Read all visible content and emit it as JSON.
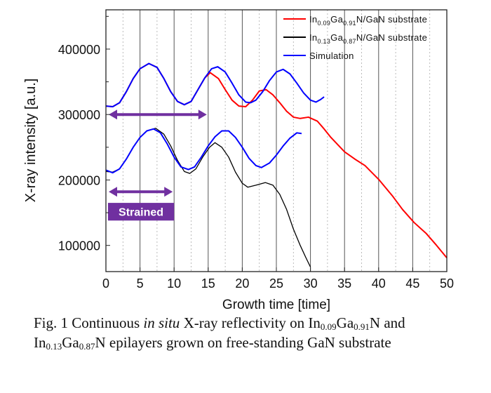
{
  "chart_data": {
    "type": "line",
    "xlabel": "Growth time [time]",
    "ylabel": "X-ray intensity [a.u.]",
    "xlim": [
      0,
      50
    ],
    "ylim": [
      60000,
      460000
    ],
    "xticks": [
      0,
      5,
      10,
      15,
      20,
      25,
      30,
      35,
      40,
      45,
      50
    ],
    "yticks": [
      100000,
      200000,
      300000,
      400000
    ],
    "grid": "vertical (solid major every 5, dotted minor every 2.5)",
    "legend_position": "top-right",
    "series": [
      {
        "name": "In0.09Ga0.91N/GaN substrate",
        "name_parts": [
          [
            "In",
            ""
          ],
          [
            "0.09",
            "sub"
          ],
          [
            "Ga",
            ""
          ],
          [
            "0.91",
            "sub"
          ],
          [
            "N/GaN substrate",
            ""
          ]
        ],
        "color": "#ff0000",
        "points": [
          [
            0,
            313000
          ],
          [
            1,
            312000
          ],
          [
            2,
            318000
          ],
          [
            3,
            335000
          ],
          [
            4,
            355000
          ],
          [
            5,
            370000
          ],
          [
            6.3,
            378000
          ],
          [
            7.5,
            372000
          ],
          [
            8.5,
            355000
          ],
          [
            9.5,
            335000
          ],
          [
            10.5,
            320000
          ],
          [
            11.5,
            315000
          ],
          [
            12.5,
            320000
          ],
          [
            13.5,
            338000
          ],
          [
            14.5,
            356000
          ],
          [
            15.3,
            364000
          ],
          [
            16.5,
            355000
          ],
          [
            17.5,
            338000
          ],
          [
            18.5,
            322000
          ],
          [
            19.5,
            313000
          ],
          [
            20.5,
            312000
          ],
          [
            21.5,
            322000
          ],
          [
            22.5,
            336000
          ],
          [
            23.5,
            338000
          ],
          [
            24.5,
            330000
          ],
          [
            25.5,
            318000
          ],
          [
            26.5,
            305000
          ],
          [
            27.5,
            296000
          ],
          [
            28.5,
            294000
          ],
          [
            29.7,
            296000
          ],
          [
            31,
            290000
          ],
          [
            32,
            278000
          ],
          [
            33,
            265000
          ],
          [
            35,
            243000
          ],
          [
            36.5,
            232000
          ],
          [
            38,
            222000
          ],
          [
            40,
            201000
          ],
          [
            42,
            176000
          ],
          [
            43.5,
            155000
          ],
          [
            45.2,
            135000
          ],
          [
            47,
            118000
          ],
          [
            48.5,
            100000
          ],
          [
            50,
            81000
          ]
        ]
      },
      {
        "name": "In0.13Ga0.87N/GaN substrate",
        "name_parts": [
          [
            "In",
            ""
          ],
          [
            "0.13",
            "sub"
          ],
          [
            "Ga",
            ""
          ],
          [
            "0.87",
            "sub"
          ],
          [
            "N/GaN substrate",
            ""
          ]
        ],
        "color": "#000000",
        "points": [
          [
            0,
            213000
          ],
          [
            1,
            212000
          ],
          [
            2,
            217000
          ],
          [
            3,
            232000
          ],
          [
            4,
            250000
          ],
          [
            5,
            265000
          ],
          [
            6,
            275000
          ],
          [
            7.3,
            279000
          ],
          [
            8.5,
            270000
          ],
          [
            9.5,
            252000
          ],
          [
            10.5,
            230000
          ],
          [
            11.5,
            213000
          ],
          [
            12.3,
            210000
          ],
          [
            13.2,
            217000
          ],
          [
            14.2,
            235000
          ],
          [
            15.2,
            250000
          ],
          [
            16,
            257000
          ],
          [
            17,
            250000
          ],
          [
            18,
            235000
          ],
          [
            19,
            212000
          ],
          [
            20,
            195000
          ],
          [
            20.8,
            189000
          ],
          [
            22,
            192000
          ],
          [
            23.4,
            196000
          ],
          [
            24.5,
            192000
          ],
          [
            25.5,
            178000
          ],
          [
            26.5,
            155000
          ],
          [
            27.5,
            125000
          ],
          [
            28.5,
            100000
          ],
          [
            29.3,
            82000
          ],
          [
            30,
            67000
          ]
        ]
      },
      {
        "name": "Simulation",
        "name_parts": [
          [
            "Simulation",
            ""
          ]
        ],
        "color": "#0000ff",
        "points": [
          [
            0,
            313000
          ],
          [
            1,
            312000
          ],
          [
            2,
            318000
          ],
          [
            3,
            335000
          ],
          [
            4,
            355000
          ],
          [
            5,
            370000
          ],
          [
            6.3,
            378000
          ],
          [
            7.5,
            372000
          ],
          [
            8.5,
            355000
          ],
          [
            9.5,
            335000
          ],
          [
            10.5,
            320000
          ],
          [
            11.5,
            315000
          ],
          [
            12.5,
            320000
          ],
          [
            13.5,
            338000
          ],
          [
            14.5,
            356000
          ],
          [
            15.5,
            370000
          ],
          [
            16.4,
            373000
          ],
          [
            17.5,
            365000
          ],
          [
            18.5,
            348000
          ],
          [
            19.5,
            330000
          ],
          [
            20.5,
            319000
          ],
          [
            21.2,
            318000
          ],
          [
            22,
            322000
          ],
          [
            23,
            335000
          ],
          [
            24,
            352000
          ],
          [
            25,
            365000
          ],
          [
            26,
            369000
          ],
          [
            27,
            362000
          ],
          [
            28,
            348000
          ],
          [
            29,
            333000
          ],
          [
            30,
            322000
          ],
          [
            30.8,
            319000
          ],
          [
            31.5,
            323000
          ],
          [
            32,
            327000
          ]
        ]
      },
      {
        "name": "Simulation",
        "legend": false,
        "color": "#0000ff",
        "points": [
          [
            0,
            215000
          ],
          [
            1,
            211000
          ],
          [
            2,
            217000
          ],
          [
            3,
            232000
          ],
          [
            4,
            250000
          ],
          [
            5,
            265000
          ],
          [
            6,
            275000
          ],
          [
            7,
            278000
          ],
          [
            8,
            272000
          ],
          [
            9,
            255000
          ],
          [
            10,
            235000
          ],
          [
            11,
            220000
          ],
          [
            12.1,
            216000
          ],
          [
            13,
            220000
          ],
          [
            14,
            235000
          ],
          [
            15,
            252000
          ],
          [
            16,
            266000
          ],
          [
            17,
            275000
          ],
          [
            18,
            275000
          ],
          [
            19,
            265000
          ],
          [
            20,
            250000
          ],
          [
            21,
            233000
          ],
          [
            22,
            222000
          ],
          [
            22.8,
            219000
          ],
          [
            24,
            226000
          ],
          [
            25,
            238000
          ],
          [
            26,
            252000
          ],
          [
            27,
            264000
          ],
          [
            28,
            272000
          ],
          [
            28.7,
            271000
          ]
        ]
      }
    ],
    "annotations": [
      {
        "type": "double-arrow",
        "x": [
          0,
          15
        ],
        "y": 300000,
        "color": "#7030a0"
      },
      {
        "type": "double-arrow",
        "x": [
          0,
          10
        ],
        "y": 182000,
        "color": "#7030a0"
      },
      {
        "type": "label-box",
        "text": "Strained",
        "x": [
          0.3,
          10
        ],
        "y": [
          138000,
          165000
        ],
        "color": "#7030a0"
      }
    ]
  },
  "caption": {
    "p1": "Fig. 1 Continuous ",
    "italic": "in situ",
    "p2": " X-ray reflectivity on In",
    "s1": "0.09",
    "p3": "Ga",
    "s2": "0.91",
    "p4": "N and",
    "p5": "In",
    "s3": "0.13",
    "p6": "Ga",
    "s4": "0.87",
    "p7": "N epilayers grown on free-standing GaN substrate"
  }
}
